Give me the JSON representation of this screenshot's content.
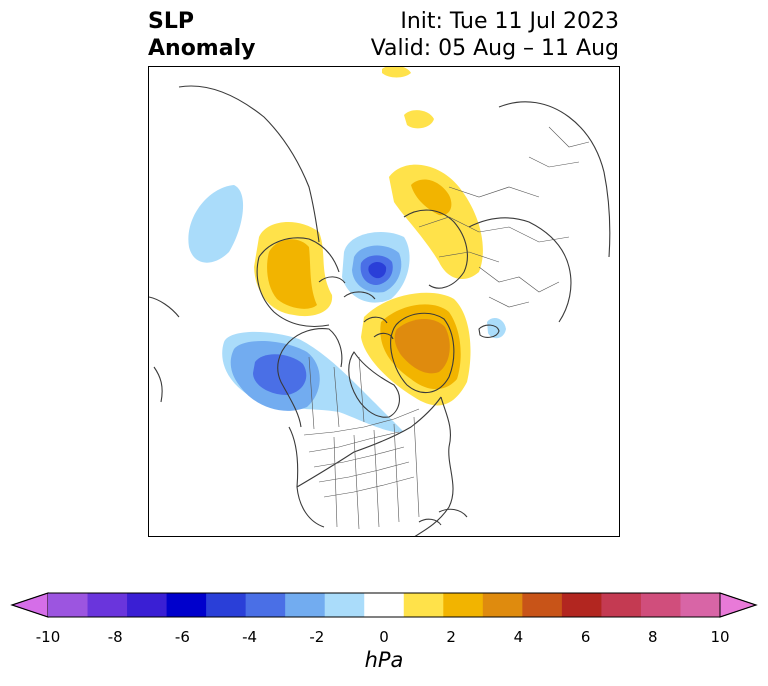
{
  "title": {
    "left_line1": "SLP",
    "left_line2": "Anomaly",
    "init": "Init: Tue 11 Jul 2023",
    "valid": "Valid: 05 Aug – 11 Aug"
  },
  "colorbar": {
    "unit": "hPa",
    "ticks": [
      "-10",
      "-8",
      "-6",
      "-4",
      "-2",
      "0",
      "2",
      "4",
      "6",
      "8",
      "10"
    ],
    "levels": [
      -10,
      -9,
      -8,
      -7,
      -6,
      -5,
      -4,
      -3,
      -2,
      -1,
      1,
      2,
      3,
      4,
      5,
      6,
      7,
      8,
      9,
      10
    ],
    "colors": [
      "#d56ee8",
      "#9c55e0",
      "#6a35dc",
      "#3a1fd4",
      "#0000cc",
      "#2a3fd8",
      "#4a6fe6",
      "#72acf0",
      "#aadcfa",
      "#ffffff",
      "#ffe24a",
      "#f2b400",
      "#df8b0e",
      "#c85418",
      "#b22620",
      "#c43a52",
      "#d04e7c",
      "#d865a6",
      "#e87ad8"
    ],
    "extend": "both"
  },
  "map": {
    "projection": "polar stereographic, North America / Arctic",
    "anomaly_features": [
      {
        "name": "negative anomaly over Arctic Ocean north of Canada",
        "min_hpa": -5
      },
      {
        "name": "negative anomaly over Gulf of Alaska",
        "min_hpa": -4
      },
      {
        "name": "negative anomaly over northern Pacific",
        "min_hpa": -1
      },
      {
        "name": "positive anomaly over Greenland",
        "max_hpa": 4
      },
      {
        "name": "positive anomaly over eastern Siberia / Chukotka",
        "max_hpa": 3
      },
      {
        "name": "positive anomaly over northern Europe / Russia",
        "max_hpa": 2
      }
    ]
  }
}
